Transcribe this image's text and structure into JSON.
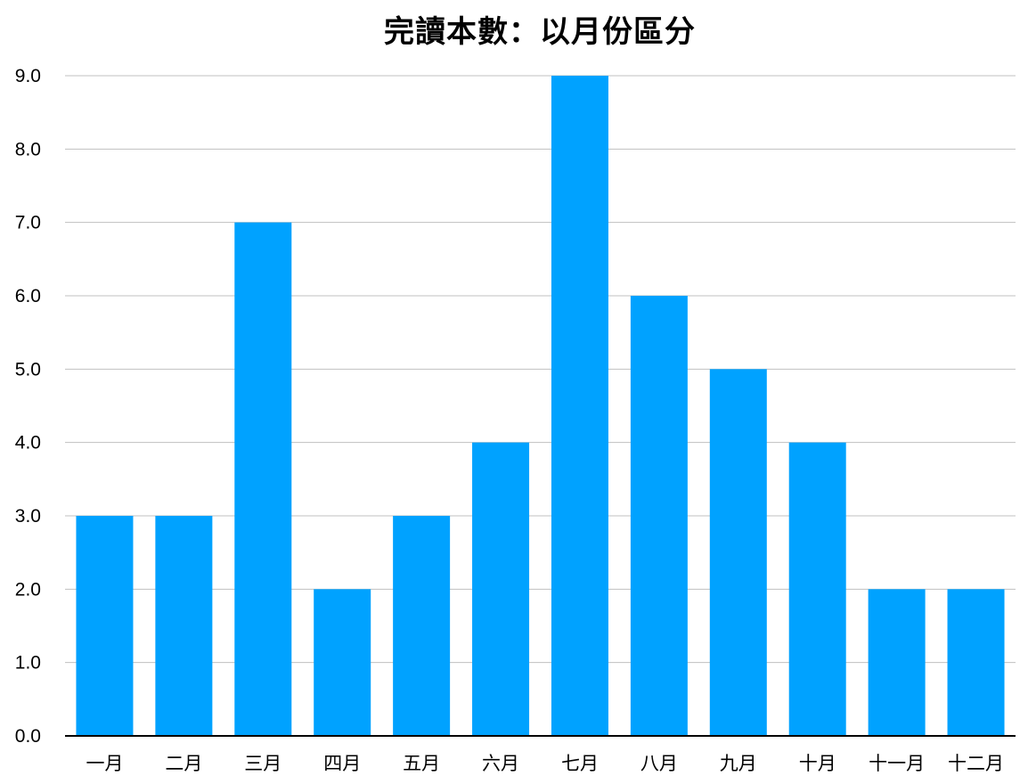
{
  "chart_data": {
    "type": "bar",
    "title": "完讀本數：以月份區分",
    "xlabel": "",
    "ylabel": "",
    "categories": [
      "一月",
      "二月",
      "三月",
      "四月",
      "五月",
      "六月",
      "七月",
      "八月",
      "九月",
      "十月",
      "十一月",
      "十二月"
    ],
    "values": [
      3,
      3,
      7,
      2,
      3,
      4,
      9,
      6,
      5,
      4,
      2,
      2
    ],
    "ylim": [
      0,
      9
    ],
    "yticks": [
      "0.0",
      "1.0",
      "2.0",
      "3.0",
      "4.0",
      "5.0",
      "6.0",
      "7.0",
      "8.0",
      "9.0"
    ],
    "grid": true,
    "legend": "none",
    "colors": {
      "bar": "#00A2FF",
      "grid": "#C0C0C0",
      "axis": "#000000"
    }
  }
}
